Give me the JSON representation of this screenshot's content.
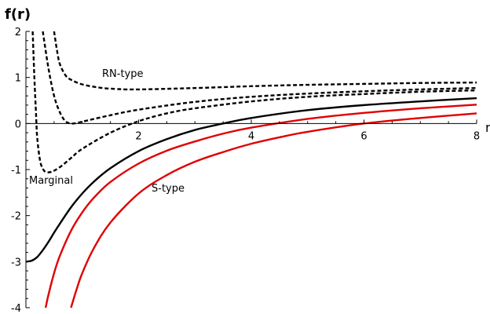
{
  "chart_data": {
    "type": "line",
    "title": "",
    "ylabel": "f(r)",
    "xlabel": "r",
    "xlim": [
      0,
      8
    ],
    "ylim": [
      -4,
      2
    ],
    "x_ticks": [
      "2",
      "4",
      "6",
      "8"
    ],
    "y_ticks": [
      "2",
      "1",
      "0",
      "-1",
      "-2",
      "-3",
      "-4"
    ],
    "grid": false,
    "legend": "none",
    "annotations": [
      "RN-type",
      "Marginal",
      "S-type"
    ],
    "series": [
      {
        "style": "dashed",
        "color": "#000000",
        "points": [
          [
            0.5,
            2.0
          ],
          [
            0.55,
            1.6
          ],
          [
            0.6,
            1.3
          ],
          [
            0.7,
            1.05
          ],
          [
            0.8,
            0.95
          ],
          [
            1.0,
            0.85
          ],
          [
            1.3,
            0.78
          ],
          [
            1.6,
            0.75
          ],
          [
            2.0,
            0.74
          ],
          [
            3.0,
            0.77
          ],
          [
            4.0,
            0.81
          ],
          [
            5.0,
            0.84
          ],
          [
            6.0,
            0.86
          ],
          [
            7.0,
            0.88
          ],
          [
            8.0,
            0.89
          ]
        ]
      },
      {
        "style": "dashed",
        "color": "#000000",
        "points": [
          [
            0.3,
            2.0
          ],
          [
            0.4,
            1.2
          ],
          [
            0.5,
            0.6
          ],
          [
            0.6,
            0.25
          ],
          [
            0.7,
            0.05
          ],
          [
            0.8,
            0.0
          ],
          [
            0.9,
            0.01
          ],
          [
            1.0,
            0.04
          ],
          [
            1.5,
            0.18
          ],
          [
            2.0,
            0.3
          ],
          [
            3.0,
            0.47
          ],
          [
            4.0,
            0.58
          ],
          [
            5.0,
            0.65
          ],
          [
            6.0,
            0.7
          ],
          [
            7.0,
            0.74
          ],
          [
            8.0,
            0.77
          ]
        ]
      },
      {
        "style": "dashed",
        "color": "#000000",
        "points": [
          [
            0.12,
            2.0
          ],
          [
            0.15,
            1.0
          ],
          [
            0.18,
            0.2
          ],
          [
            0.2,
            -0.3
          ],
          [
            0.25,
            -0.8
          ],
          [
            0.3,
            -0.98
          ],
          [
            0.35,
            -1.05
          ],
          [
            0.45,
            -1.05
          ],
          [
            0.6,
            -0.95
          ],
          [
            0.8,
            -0.75
          ],
          [
            1.0,
            -0.55
          ],
          [
            1.5,
            -0.2
          ],
          [
            2.0,
            0.05
          ],
          [
            2.5,
            0.22
          ],
          [
            3.0,
            0.33
          ],
          [
            4.0,
            0.48
          ],
          [
            5.0,
            0.58
          ],
          [
            6.0,
            0.64
          ],
          [
            7.0,
            0.69
          ],
          [
            8.0,
            0.72
          ]
        ]
      },
      {
        "style": "solid",
        "color": "#000000",
        "points": [
          [
            0.0,
            -3.0
          ],
          [
            0.1,
            -2.98
          ],
          [
            0.2,
            -2.9
          ],
          [
            0.3,
            -2.75
          ],
          [
            0.4,
            -2.57
          ],
          [
            0.5,
            -2.37
          ],
          [
            0.6,
            -2.18
          ],
          [
            0.8,
            -1.82
          ],
          [
            1.0,
            -1.52
          ],
          [
            1.2,
            -1.27
          ],
          [
            1.5,
            -0.97
          ],
          [
            2.0,
            -0.6
          ],
          [
            2.5,
            -0.34
          ],
          [
            3.0,
            -0.14
          ],
          [
            3.5,
            0.0
          ],
          [
            4.0,
            0.12
          ],
          [
            5.0,
            0.29
          ],
          [
            6.0,
            0.4
          ],
          [
            7.0,
            0.48
          ],
          [
            8.0,
            0.55
          ]
        ]
      },
      {
        "style": "solid",
        "color": "#e00000",
        "points": [
          [
            0.35,
            -4.0
          ],
          [
            0.4,
            -3.72
          ],
          [
            0.5,
            -3.25
          ],
          [
            0.6,
            -2.88
          ],
          [
            0.8,
            -2.33
          ],
          [
            1.0,
            -1.93
          ],
          [
            1.2,
            -1.62
          ],
          [
            1.5,
            -1.27
          ],
          [
            2.0,
            -0.87
          ],
          [
            2.5,
            -0.59
          ],
          [
            3.0,
            -0.39
          ],
          [
            3.5,
            -0.22
          ],
          [
            4.0,
            -0.09
          ],
          [
            5.0,
            0.1
          ],
          [
            6.0,
            0.23
          ],
          [
            7.0,
            0.33
          ],
          [
            8.0,
            0.41
          ]
        ]
      },
      {
        "style": "solid",
        "color": "#e00000",
        "points": [
          [
            0.8,
            -4.0
          ],
          [
            0.9,
            -3.6
          ],
          [
            1.0,
            -3.25
          ],
          [
            1.2,
            -2.72
          ],
          [
            1.5,
            -2.15
          ],
          [
            2.0,
            -1.52
          ],
          [
            2.5,
            -1.12
          ],
          [
            3.0,
            -0.83
          ],
          [
            3.5,
            -0.62
          ],
          [
            4.0,
            -0.44
          ],
          [
            4.5,
            -0.3
          ],
          [
            5.0,
            -0.18
          ],
          [
            6.0,
            0.0
          ],
          [
            7.0,
            0.12
          ],
          [
            8.0,
            0.22
          ]
        ]
      }
    ]
  }
}
